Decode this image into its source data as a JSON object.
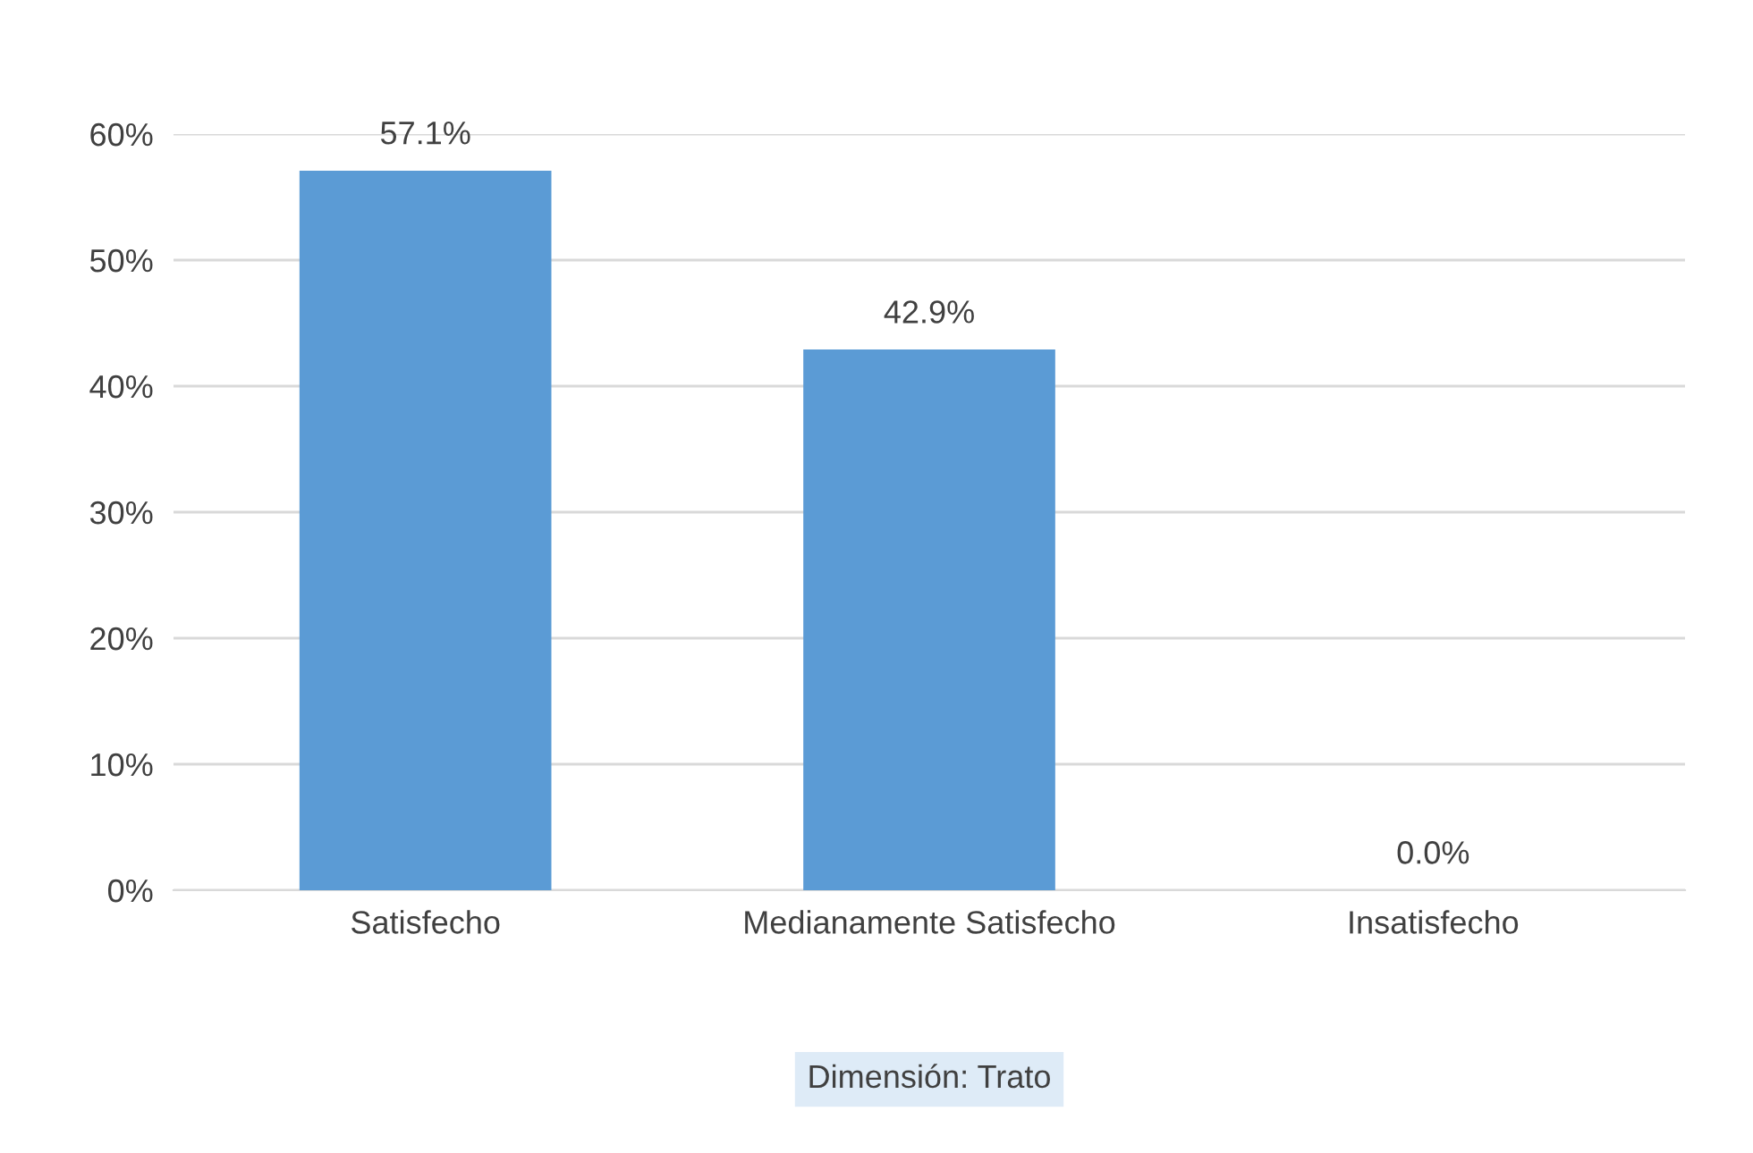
{
  "chart_data": {
    "type": "bar",
    "xlabel": "Dimensión: Trato",
    "categories": [
      "Satisfecho",
      "Medianamente Satisfecho",
      "Insatisfecho"
    ],
    "values": [
      57.1,
      42.9,
      0.0
    ],
    "color": "#5b9bd5",
    "value_labels": [
      "57.1%",
      "42.9%",
      "0.0%"
    ],
    "ylim": [
      0,
      60
    ],
    "yticks": [
      {
        "value": 0,
        "label": "0%"
      },
      {
        "value": 10,
        "label": "10%"
      },
      {
        "value": 20,
        "label": "20%"
      },
      {
        "value": 30,
        "label": "30%"
      },
      {
        "value": 40,
        "label": "40%"
      },
      {
        "value": 50,
        "label": "50%"
      },
      {
        "value": 60,
        "label": "60%"
      }
    ],
    "grid": "y"
  }
}
